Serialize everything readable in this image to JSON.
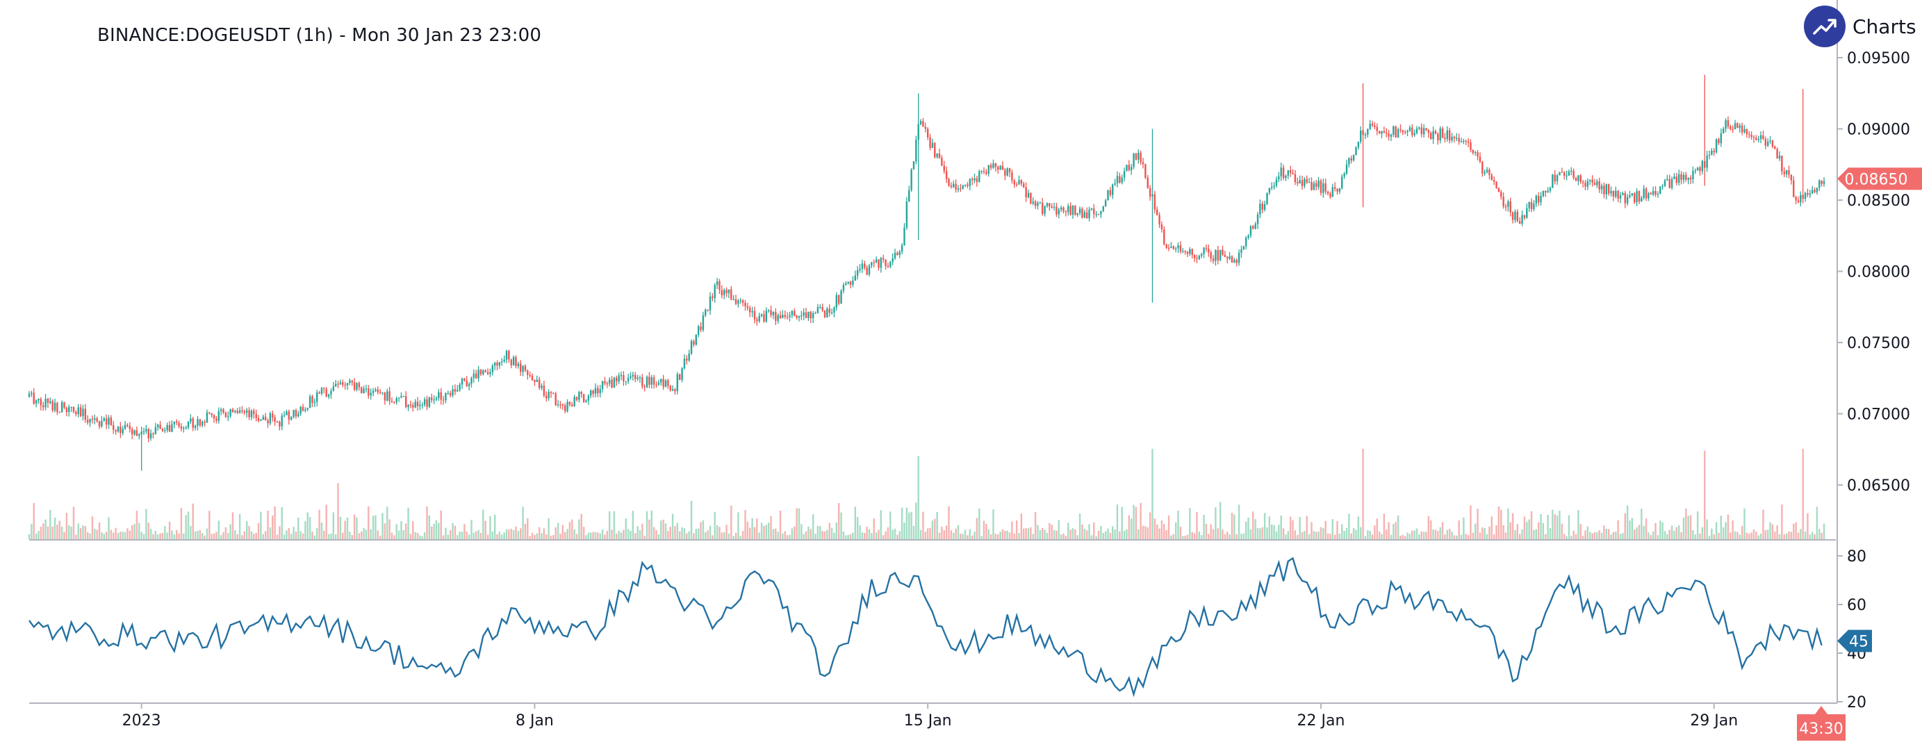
{
  "title": "BINANCE:DOGEUSDT (1h) - Mon 30 Jan 23 23:00",
  "brand": {
    "text": "Charts p",
    "icon": "trend-up-icon"
  },
  "colors": {
    "up": "#26a69a",
    "down": "#ef5350",
    "upVol": "#a5dcc4",
    "downVol": "#f5b3b0",
    "rsi": "#2471a3",
    "priceTag": "#f26c6c",
    "rsiTag": "#2471a3",
    "brandCircle": "#2f3e9e"
  },
  "current_price_label": "0.08650",
  "current_rsi_label": "45",
  "countdown_label": "43:30",
  "chart_data": {
    "type": "candlestick",
    "timeframe": "1h",
    "x_tick_labels": [
      "2023",
      "8 Jan",
      "15 Jan",
      "22 Jan",
      "29 Jan"
    ],
    "price_axis": {
      "ylim": [
        0.0635,
        0.0955
      ],
      "ticks": [
        "0.09500",
        "0.09000",
        "0.08500",
        "0.08000",
        "0.07500",
        "0.07000",
        "0.06500"
      ]
    },
    "rsi_axis": {
      "ylim": [
        20,
        80
      ],
      "ticks": [
        "80",
        "60",
        "40",
        "20"
      ]
    },
    "price_keypoints": [
      {
        "date": "2022-12-30 00:00",
        "close": 0.0712
      },
      {
        "date": "2023-01-01 00:00",
        "close": 0.0685
      },
      {
        "date": "2023-01-02 12:00",
        "close": 0.07
      },
      {
        "date": "2023-01-03 12:00",
        "close": 0.0695
      },
      {
        "date": "2023-01-04 12:00",
        "close": 0.0722
      },
      {
        "date": "2023-01-06 00:00",
        "close": 0.0705
      },
      {
        "date": "2023-01-07 12:00",
        "close": 0.074
      },
      {
        "date": "2023-01-08 12:00",
        "close": 0.0705
      },
      {
        "date": "2023-01-09 12:00",
        "close": 0.0725
      },
      {
        "date": "2023-01-10 12:00",
        "close": 0.072
      },
      {
        "date": "2023-01-11 06:00",
        "close": 0.079
      },
      {
        "date": "2023-01-12 00:00",
        "close": 0.0768
      },
      {
        "date": "2023-01-13 06:00",
        "close": 0.0772
      },
      {
        "date": "2023-01-13 18:00",
        "close": 0.08
      },
      {
        "date": "2023-01-14 12:00",
        "close": 0.081
      },
      {
        "date": "2023-01-14 20:00",
        "close": 0.0905
      },
      {
        "date": "2023-01-15 12:00",
        "close": 0.0855
      },
      {
        "date": "2023-01-16 06:00",
        "close": 0.0875
      },
      {
        "date": "2023-01-17 00:00",
        "close": 0.0845
      },
      {
        "date": "2023-01-18 00:00",
        "close": 0.084
      },
      {
        "date": "2023-01-18 18:00",
        "close": 0.0885
      },
      {
        "date": "2023-01-19 06:00",
        "close": 0.0815
      },
      {
        "date": "2023-01-20 12:00",
        "close": 0.081
      },
      {
        "date": "2023-01-21 06:00",
        "close": 0.087
      },
      {
        "date": "2023-01-22 06:00",
        "close": 0.0855
      },
      {
        "date": "2023-01-22 18:00",
        "close": 0.09
      },
      {
        "date": "2023-01-24 12:00",
        "close": 0.0895
      },
      {
        "date": "2023-01-25 12:00",
        "close": 0.0835
      },
      {
        "date": "2023-01-26 06:00",
        "close": 0.087
      },
      {
        "date": "2023-01-27 12:00",
        "close": 0.085
      },
      {
        "date": "2023-01-28 18:00",
        "close": 0.087
      },
      {
        "date": "2023-01-29 06:00",
        "close": 0.0905
      },
      {
        "date": "2023-01-30 00:00",
        "close": 0.089
      },
      {
        "date": "2023-01-30 12:00",
        "close": 0.085
      },
      {
        "date": "2023-01-30 23:00",
        "close": 0.0865
      }
    ],
    "price_spikes": [
      {
        "date": "2023-01-14 20:00",
        "high": 0.0925,
        "low": 0.0822
      },
      {
        "date": "2023-01-19 00:00",
        "high": 0.09,
        "low": 0.0778
      },
      {
        "date": "2023-01-22 18:00",
        "high": 0.0932,
        "low": 0.0845
      },
      {
        "date": "2023-01-28 20:00",
        "high": 0.0938,
        "low": 0.086
      },
      {
        "date": "2023-01-30 14:00",
        "high": 0.0928,
        "low": 0.0848
      },
      {
        "date": "2023-01-01 00:00",
        "high": 0.069,
        "low": 0.066
      }
    ],
    "volume_spikes": [
      {
        "date": "2023-01-14 20:00",
        "relative": 0.92
      },
      {
        "date": "2023-01-19 00:00",
        "relative": 1.0
      },
      {
        "date": "2023-01-22 18:00",
        "relative": 1.0
      },
      {
        "date": "2023-01-28 20:00",
        "relative": 0.98
      },
      {
        "date": "2023-01-30 14:00",
        "relative": 1.0
      },
      {
        "date": "2023-01-04 12:00",
        "relative": 0.62
      }
    ],
    "rsi_keypoints": [
      {
        "date": "2022-12-30 00:00",
        "rsi": 50
      },
      {
        "date": "2023-01-02 00:00",
        "rsi": 45
      },
      {
        "date": "2023-01-04 00:00",
        "rsi": 55
      },
      {
        "date": "2023-01-06 12:00",
        "rsi": 30
      },
      {
        "date": "2023-01-07 12:00",
        "rsi": 55
      },
      {
        "date": "2023-01-09 00:00",
        "rsi": 48
      },
      {
        "date": "2023-01-10 00:00",
        "rsi": 75
      },
      {
        "date": "2023-01-11 06:00",
        "rsi": 50
      },
      {
        "date": "2023-01-12 00:00",
        "rsi": 75
      },
      {
        "date": "2023-01-13 06:00",
        "rsi": 30
      },
      {
        "date": "2023-01-14 00:00",
        "rsi": 68
      },
      {
        "date": "2023-01-14 20:00",
        "rsi": 72
      },
      {
        "date": "2023-01-15 12:00",
        "rsi": 40
      },
      {
        "date": "2023-01-16 12:00",
        "rsi": 52
      },
      {
        "date": "2023-01-18 00:00",
        "rsi": 33
      },
      {
        "date": "2023-01-18 18:00",
        "rsi": 26
      },
      {
        "date": "2023-01-19 18:00",
        "rsi": 55
      },
      {
        "date": "2023-01-20 12:00",
        "rsi": 55
      },
      {
        "date": "2023-01-21 12:00",
        "rsi": 78
      },
      {
        "date": "2023-01-22 06:00",
        "rsi": 50
      },
      {
        "date": "2023-01-23 06:00",
        "rsi": 65
      },
      {
        "date": "2023-01-24 18:00",
        "rsi": 55
      },
      {
        "date": "2023-01-25 12:00",
        "rsi": 30
      },
      {
        "date": "2023-01-26 06:00",
        "rsi": 70
      },
      {
        "date": "2023-01-27 06:00",
        "rsi": 50
      },
      {
        "date": "2023-01-28 18:00",
        "rsi": 70
      },
      {
        "date": "2023-01-29 12:00",
        "rsi": 38
      },
      {
        "date": "2023-01-30 06:00",
        "rsi": 52
      },
      {
        "date": "2023-01-30 23:00",
        "rsi": 45
      }
    ]
  }
}
